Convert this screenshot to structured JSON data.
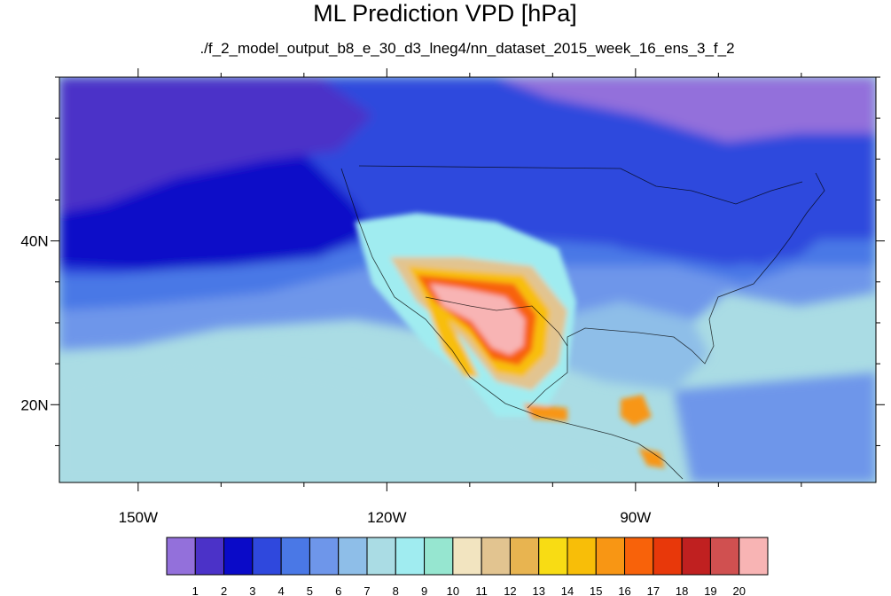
{
  "chart_data": {
    "type": "heatmap",
    "title": "ML Prediction VPD [hPa]",
    "subtitle": "./f_2_model_output_b8_e_30_d3_lneg4/nn_dataset_2015_week_16_ens_3_f_2",
    "xlabel": "",
    "ylabel": "",
    "x_ticks": [
      "150W",
      "120W",
      "90W"
    ],
    "x_tick_values": [
      -150,
      -120,
      -90
    ],
    "y_ticks": [
      "40N",
      "20N"
    ],
    "y_tick_values": [
      40,
      20
    ],
    "xlim": [
      -159.5,
      -61
    ],
    "ylim": [
      10.5,
      60
    ],
    "colorbar": {
      "levels": [
        "1",
        "2",
        "3",
        "4",
        "5",
        "6",
        "7",
        "8",
        "9",
        "10",
        "11",
        "12",
        "13",
        "14",
        "15",
        "16",
        "17",
        "18",
        "19",
        "20"
      ],
      "colors": [
        "#9370db",
        "#4b32c8",
        "#0a0ac8",
        "#2f48dd",
        "#4a78e6",
        "#6e96ea",
        "#8ebee8",
        "#aadce4",
        "#a0ecf0",
        "#96e6d0",
        "#f2e4c0",
        "#e2c490",
        "#e8b450",
        "#f8dc14",
        "#f8be08",
        "#f89614",
        "#f8620a",
        "#e8380a",
        "#c02020",
        "#d05050",
        "#f8b4b4"
      ]
    },
    "grid": false,
    "legend": "bottom"
  }
}
